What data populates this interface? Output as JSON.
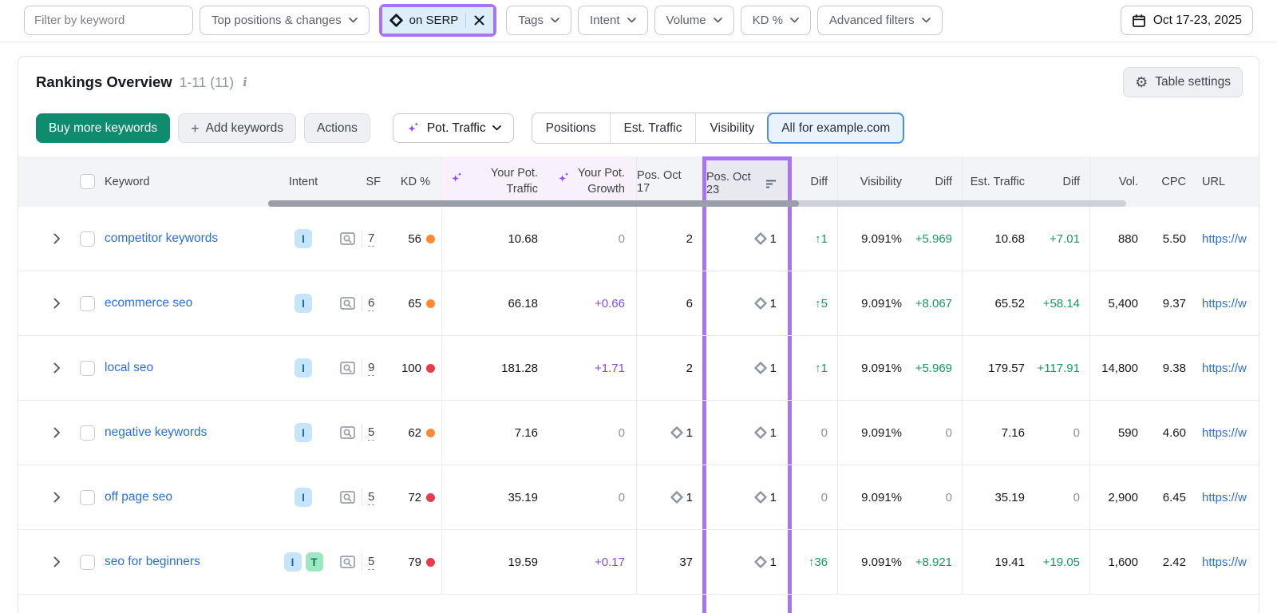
{
  "filter_bar": {
    "keyword_filter_placeholder": "Filter by keyword",
    "dropdowns": [
      "Top positions & changes",
      "Tags",
      "Intent",
      "Volume",
      "KD %",
      "Advanced filters"
    ],
    "serp_filter_chip": "on SERP",
    "date_range": "Oct 17-23, 2025"
  },
  "panel_header": {
    "title": "Rankings Overview",
    "range_count": "1-11 (11)",
    "table_settings_label": "Table settings"
  },
  "toolbar": {
    "buy_more_keywords_label": "Buy more keywords",
    "add_keywords_label": "Add keywords",
    "actions_label": "Actions",
    "pot_traffic_label": "Pot. Traffic",
    "view_tabs": [
      "Positions",
      "Est. Traffic",
      "Visibility",
      "All for example.com"
    ],
    "active_tab": "All for example.com"
  },
  "table": {
    "columns": {
      "keyword": "Keyword",
      "intent": "Intent",
      "sf": "SF",
      "kd": "KD %",
      "pot_traffic": "Your Pot. Traffic",
      "pot_growth": "Your Pot. Growth",
      "pos_prev": "Pos. Oct 17",
      "pos_current": "Pos. Oct 23",
      "diff_position": "Diff",
      "visibility": "Visibility",
      "diff_visibility": "Diff",
      "est_traffic": "Est. Traffic",
      "diff_est_traffic": "Diff",
      "volume": "Vol.",
      "cpc": "CPC",
      "url": "URL"
    },
    "rows": [
      {
        "keyword": "competitor keywords",
        "intents": [
          {
            "label": "I",
            "type": "informational"
          }
        ],
        "sf_count": "7",
        "kd": "56",
        "kd_level": "orange",
        "pot_traffic": "10.68",
        "pot_growth": {
          "value": "0",
          "tone": "muted"
        },
        "pos_oct17": {
          "value": "2",
          "serp_feature": false
        },
        "pos_oct23": {
          "value": "1",
          "serp_feature": true
        },
        "pos_diff": {
          "value": "↑1",
          "tone": "green"
        },
        "visibility": "9.091%",
        "visibility_diff": {
          "value": "+5.969",
          "tone": "green"
        },
        "est_traffic": "10.68",
        "est_traffic_diff": {
          "value": "+7.01",
          "tone": "green"
        },
        "volume": "880",
        "cpc": "5.50",
        "url": "https://w"
      },
      {
        "keyword": "ecommerce seo",
        "intents": [
          {
            "label": "I",
            "type": "informational"
          }
        ],
        "sf_count": "6",
        "kd": "65",
        "kd_level": "orange",
        "pot_traffic": "66.18",
        "pot_growth": {
          "value": "+0.66",
          "tone": "purple"
        },
        "pos_oct17": {
          "value": "6",
          "serp_feature": false
        },
        "pos_oct23": {
          "value": "1",
          "serp_feature": true
        },
        "pos_diff": {
          "value": "↑5",
          "tone": "green"
        },
        "visibility": "9.091%",
        "visibility_diff": {
          "value": "+8.067",
          "tone": "green"
        },
        "est_traffic": "65.52",
        "est_traffic_diff": {
          "value": "+58.14",
          "tone": "green"
        },
        "volume": "5,400",
        "cpc": "9.37",
        "url": "https://w"
      },
      {
        "keyword": "local seo",
        "intents": [
          {
            "label": "I",
            "type": "informational"
          }
        ],
        "sf_count": "9",
        "kd": "100",
        "kd_level": "red",
        "pot_traffic": "181.28",
        "pot_growth": {
          "value": "+1.71",
          "tone": "purple"
        },
        "pos_oct17": {
          "value": "2",
          "serp_feature": false
        },
        "pos_oct23": {
          "value": "1",
          "serp_feature": true
        },
        "pos_diff": {
          "value": "↑1",
          "tone": "green"
        },
        "visibility": "9.091%",
        "visibility_diff": {
          "value": "+5.969",
          "tone": "green"
        },
        "est_traffic": "179.57",
        "est_traffic_diff": {
          "value": "+117.91",
          "tone": "green"
        },
        "volume": "14,800",
        "cpc": "9.38",
        "url": "https://w"
      },
      {
        "keyword": "negative keywords",
        "intents": [
          {
            "label": "I",
            "type": "informational"
          }
        ],
        "sf_count": "5",
        "kd": "62",
        "kd_level": "orange",
        "pot_traffic": "7.16",
        "pot_growth": {
          "value": "0",
          "tone": "muted"
        },
        "pos_oct17": {
          "value": "1",
          "serp_feature": true
        },
        "pos_oct23": {
          "value": "1",
          "serp_feature": true
        },
        "pos_diff": {
          "value": "0",
          "tone": "muted"
        },
        "visibility": "9.091%",
        "visibility_diff": {
          "value": "0",
          "tone": "muted"
        },
        "est_traffic": "7.16",
        "est_traffic_diff": {
          "value": "0",
          "tone": "muted"
        },
        "volume": "590",
        "cpc": "4.60",
        "url": "https://w"
      },
      {
        "keyword": "off page seo",
        "intents": [
          {
            "label": "I",
            "type": "informational"
          }
        ],
        "sf_count": "5",
        "kd": "72",
        "kd_level": "red",
        "pot_traffic": "35.19",
        "pot_growth": {
          "value": "0",
          "tone": "muted"
        },
        "pos_oct17": {
          "value": "1",
          "serp_feature": true
        },
        "pos_oct23": {
          "value": "1",
          "serp_feature": true
        },
        "pos_diff": {
          "value": "0",
          "tone": "muted"
        },
        "visibility": "9.091%",
        "visibility_diff": {
          "value": "0",
          "tone": "muted"
        },
        "est_traffic": "35.19",
        "est_traffic_diff": {
          "value": "0",
          "tone": "muted"
        },
        "volume": "2,900",
        "cpc": "6.45",
        "url": "https://w"
      },
      {
        "keyword": "seo for beginners",
        "intents": [
          {
            "label": "I",
            "type": "informational"
          },
          {
            "label": "T",
            "type": "transactional"
          }
        ],
        "sf_count": "5",
        "kd": "79",
        "kd_level": "red",
        "pot_traffic": "19.59",
        "pot_growth": {
          "value": "+0.17",
          "tone": "purple"
        },
        "pos_oct17": {
          "value": "37",
          "serp_feature": false
        },
        "pos_oct23": {
          "value": "1",
          "serp_feature": true
        },
        "pos_diff": {
          "value": "↑36",
          "tone": "green"
        },
        "visibility": "9.091%",
        "visibility_diff": {
          "value": "+8.921",
          "tone": "green"
        },
        "est_traffic": "19.41",
        "est_traffic_diff": {
          "value": "+19.05",
          "tone": "green"
        },
        "volume": "1,600",
        "cpc": "2.42",
        "url": "https://w"
      }
    ]
  },
  "colors": {
    "highlight_purple": "#a874f2",
    "brand_green": "#0e8c6d",
    "link_blue": "#2b6fd9",
    "positive_green": "#169a62",
    "growth_purple": "#8649e1",
    "muted_gray": "#8b919f",
    "kd_orange": "#ff8a33",
    "kd_red": "#e93a4a",
    "selected_tab_blue": "#4b90e4"
  }
}
